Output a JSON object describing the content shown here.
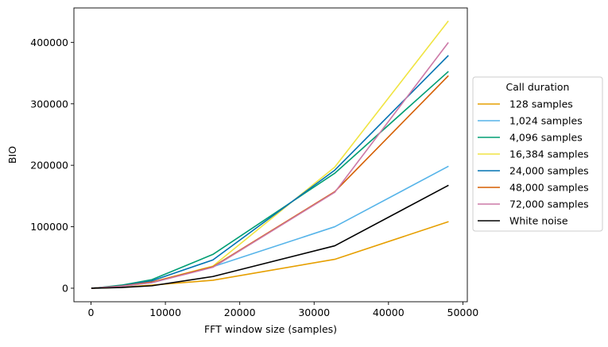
{
  "chart_data": {
    "type": "line",
    "title": "",
    "xlabel": "FFT window size (samples)",
    "ylabel": "BIO",
    "xlim": [
      -2300,
      50600
    ],
    "ylim": [
      -22000,
      456000
    ],
    "xticks": [
      0,
      10000,
      20000,
      30000,
      40000,
      50000
    ],
    "xtick_labels": [
      "0",
      "10000",
      "20000",
      "30000",
      "40000",
      "50000"
    ],
    "yticks": [
      0,
      100000,
      200000,
      300000,
      400000
    ],
    "ytick_labels": [
      "0",
      "100000",
      "200000",
      "300000",
      "400000"
    ],
    "x": [
      128,
      1024,
      4096,
      8192,
      16384,
      32768,
      48000
    ],
    "grid": false,
    "legend": {
      "title": "Call duration",
      "placement": "right-outside"
    },
    "series": [
      {
        "name": "128 samples",
        "color": "#E69F00",
        "values": [
          0,
          300,
          1500,
          5000,
          13000,
          47000,
          108000
        ]
      },
      {
        "name": "1,024 samples",
        "color": "#56B4E9",
        "values": [
          0,
          500,
          3000,
          9000,
          35000,
          100000,
          198000
        ]
      },
      {
        "name": "4,096 samples",
        "color": "#009E73",
        "values": [
          0,
          1000,
          5000,
          14000,
          55000,
          187000,
          352000
        ]
      },
      {
        "name": "16,384 samples",
        "color": "#F0E442",
        "values": [
          0,
          600,
          3500,
          10000,
          36000,
          197000,
          434000
        ]
      },
      {
        "name": "24,000 samples",
        "color": "#0072B2",
        "values": [
          0,
          800,
          4000,
          12000,
          46000,
          192000,
          378000
        ]
      },
      {
        "name": "48,000 samples",
        "color": "#D55E00",
        "values": [
          0,
          700,
          3500,
          10000,
          35000,
          157000,
          345000
        ]
      },
      {
        "name": "72,000 samples",
        "color": "#CC79A7",
        "values": [
          0,
          600,
          3200,
          9000,
          34000,
          156000,
          399000
        ]
      },
      {
        "name": "White noise",
        "color": "#000000",
        "values": [
          0,
          200,
          1200,
          4000,
          19000,
          69000,
          167000
        ]
      }
    ]
  }
}
